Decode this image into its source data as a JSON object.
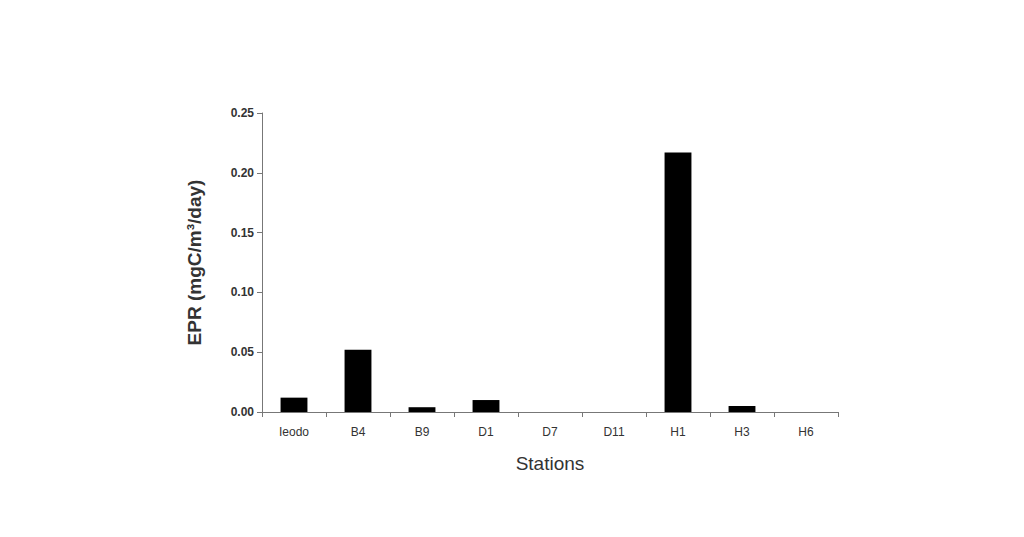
{
  "chart_data": {
    "type": "bar",
    "x_label": "Stations",
    "y_label": "EPR (mgC/m³/day)",
    "categories": [
      "Ieodo",
      "B4",
      "B9",
      "D1",
      "D7",
      "D11",
      "H1",
      "H3",
      "H6"
    ],
    "values": [
      0.012,
      0.052,
      0.004,
      0.01,
      0,
      0,
      0.217,
      0.005,
      0
    ],
    "color": "#000000",
    "ylim": [
      0,
      0.25
    ],
    "yticks": [
      {
        "value": 0,
        "label": "0.00"
      },
      0.05,
      {
        "value": 0.1,
        "label": "0.10"
      },
      0.15,
      {
        "value": 0.2,
        "label": "0.20"
      },
      0.25
    ],
    "grid": false
  }
}
